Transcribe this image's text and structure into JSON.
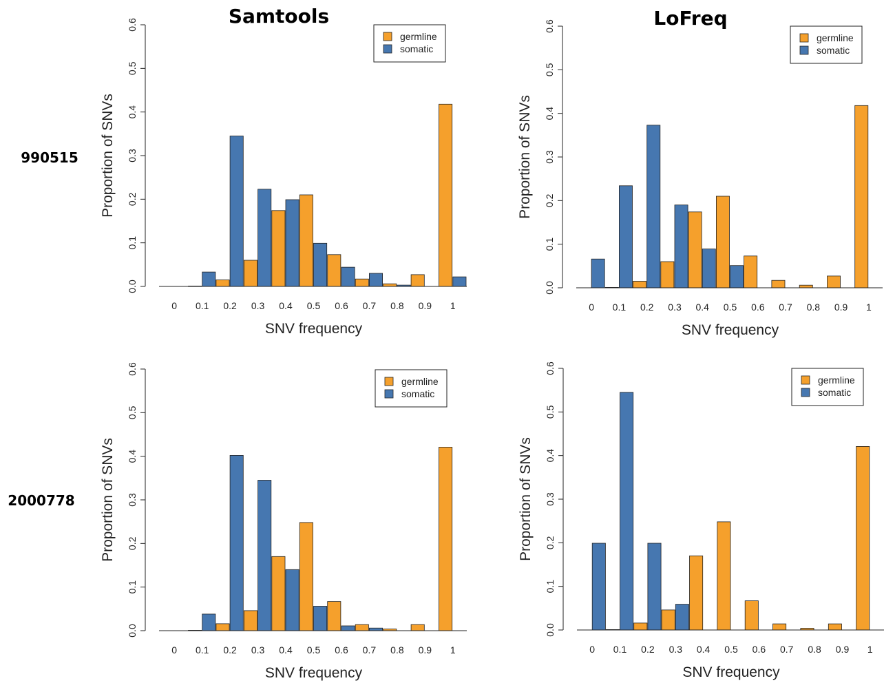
{
  "column_titles": [
    "Samtools",
    "LoFreq"
  ],
  "row_labels": [
    "990515",
    "2000778"
  ],
  "colors": {
    "germline": "#f5a02c",
    "somatic": "#4677b0"
  },
  "chart_data": [
    {
      "type": "bar",
      "panel": "990515 / Samtools",
      "categories": [
        "0",
        "0.1",
        "0.2",
        "0.3",
        "0.4",
        "0.5",
        "0.6",
        "0.7",
        "0.8",
        "0.9",
        "1"
      ],
      "series": [
        {
          "name": "germline",
          "values": [
            0,
            0.001,
            0.015,
            0.06,
            0.174,
            0.21,
            0.073,
            0.017,
            0.006,
            0.027,
            0.418
          ]
        },
        {
          "name": "somatic",
          "values": [
            0,
            0.033,
            0.345,
            0.223,
            0.199,
            0.099,
            0.044,
            0.03,
            0.003,
            0,
            0.022
          ]
        }
      ],
      "xlabel": "SNV frequency",
      "ylabel": "Proportion of SNVs",
      "ylim": [
        0,
        0.6
      ],
      "yticks": [
        "0.0",
        "0.1",
        "0.2",
        "0.3",
        "0.4",
        "0.5",
        "0.6"
      ],
      "legend": [
        "germline",
        "somatic"
      ],
      "legend_position": "top-right"
    },
    {
      "type": "bar",
      "panel": "990515 / LoFreq",
      "categories": [
        "0",
        "0.1",
        "0.2",
        "0.3",
        "0.4",
        "0.5",
        "0.6",
        "0.7",
        "0.8",
        "0.9",
        "1"
      ],
      "series": [
        {
          "name": "germline",
          "values": [
            0,
            0.001,
            0.015,
            0.06,
            0.174,
            0.21,
            0.073,
            0.017,
            0.006,
            0.027,
            0.418
          ]
        },
        {
          "name": "somatic",
          "values": [
            0.066,
            0.234,
            0.373,
            0.19,
            0.089,
            0.051,
            0,
            0,
            0,
            0,
            0
          ]
        }
      ],
      "xlabel": "SNV frequency",
      "ylabel": "Proportion of SNVs",
      "ylim": [
        0,
        0.6
      ],
      "yticks": [
        "0.0",
        "0.1",
        "0.2",
        "0.3",
        "0.4",
        "0.5",
        "0.6"
      ],
      "legend": [
        "germline",
        "somatic"
      ],
      "legend_position": "top-right"
    },
    {
      "type": "bar",
      "panel": "2000778 / Samtools",
      "categories": [
        "0",
        "0.1",
        "0.2",
        "0.3",
        "0.4",
        "0.5",
        "0.6",
        "0.7",
        "0.8",
        "0.9",
        "1"
      ],
      "series": [
        {
          "name": "germline",
          "values": [
            0,
            0.001,
            0.016,
            0.046,
            0.17,
            0.248,
            0.067,
            0.014,
            0.004,
            0.014,
            0.421
          ]
        },
        {
          "name": "somatic",
          "values": [
            0,
            0.038,
            0.402,
            0.345,
            0.14,
            0.056,
            0.011,
            0.006,
            0,
            0,
            0
          ]
        }
      ],
      "xlabel": "SNV frequency",
      "ylabel": "Proportion of SNVs",
      "ylim": [
        0,
        0.6
      ],
      "yticks": [
        "0.0",
        "0.1",
        "0.2",
        "0.3",
        "0.4",
        "0.5",
        "0.6"
      ],
      "legend": [
        "germline",
        "somatic"
      ],
      "legend_position": "top-right"
    },
    {
      "type": "bar",
      "panel": "2000778 / LoFreq",
      "categories": [
        "0",
        "0.1",
        "0.2",
        "0.3",
        "0.4",
        "0.5",
        "0.6",
        "0.7",
        "0.8",
        "0.9",
        "1"
      ],
      "series": [
        {
          "name": "germline",
          "values": [
            0,
            0.001,
            0.016,
            0.046,
            0.17,
            0.248,
            0.067,
            0.014,
            0.004,
            0.014,
            0.421
          ]
        },
        {
          "name": "somatic",
          "values": [
            0.199,
            0.545,
            0.199,
            0.059,
            0,
            0,
            0,
            0,
            0,
            0,
            0
          ]
        }
      ],
      "xlabel": "SNV frequency",
      "ylabel": "Proportion of SNVs",
      "ylim": [
        0,
        0.6
      ],
      "yticks": [
        "0.0",
        "0.1",
        "0.2",
        "0.3",
        "0.4",
        "0.5",
        "0.6"
      ],
      "legend": [
        "germline",
        "somatic"
      ],
      "legend_position": "top-right"
    }
  ]
}
